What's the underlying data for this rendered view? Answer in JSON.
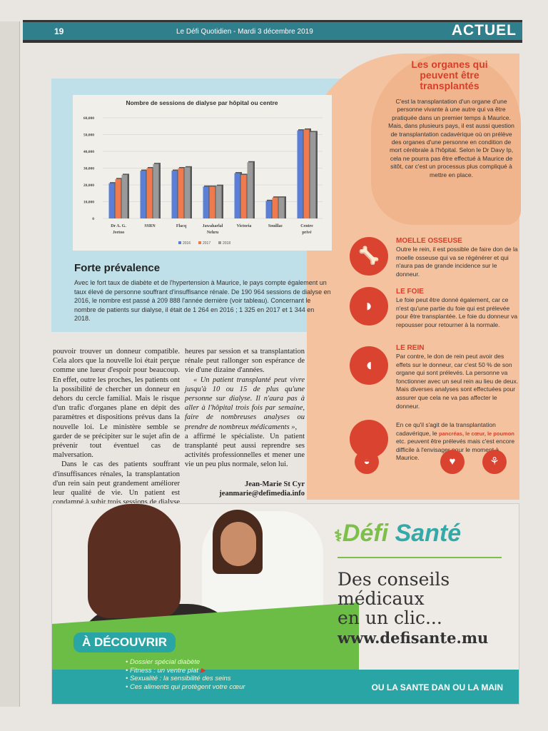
{
  "header": {
    "page": "19",
    "publication": "Le Défi Quotidien - Mardi 3 décembre 2019",
    "section": "ACTUEL"
  },
  "chart_data": {
    "type": "bar",
    "title": "Nombre de sessions de dialyse par hôpital ou centre",
    "categories": [
      "Dr A. G. Jeetoo",
      "SSRN",
      "Flacq",
      "Jawaharlal Nehru",
      "Victoria",
      "Souillac",
      "Centre privé"
    ],
    "series": [
      {
        "name": "2016",
        "color": "#5b7fd6",
        "values": [
          21000,
          28500,
          28500,
          19000,
          27000,
          10500,
          52500
        ]
      },
      {
        "name": "2017",
        "color": "#ee7a4f",
        "values": [
          23500,
          30000,
          30000,
          19000,
          26000,
          12500,
          53000
        ]
      },
      {
        "name": "2018",
        "color": "#9a9a9a",
        "values": [
          26000,
          32500,
          30500,
          19500,
          33500,
          12500,
          51500
        ]
      }
    ],
    "yticks": [
      "0",
      "10,000",
      "20,000",
      "30,000",
      "40,000",
      "50,000",
      "60,000"
    ],
    "ylim": [
      0,
      60000
    ],
    "grid": true,
    "legend": "bottom"
  },
  "forte": {
    "title": "Forte prévalence",
    "text": "Avec le fort taux de diabète et de l'hypertension à Maurice, le pays compte également un taux élevé de personne souffrant d'insuffisance rénale. De 190 964 sessions de dialyse en 2016, le nombre est passé à 209 888 l'année dernière (voir tableau). Concernant le nombre de patients sur dialyse, il était de 1 264 en 2016 ; 1 325 en 2017 et 1 344 en 2018."
  },
  "organes": {
    "title": "Les organes qui peuvent être transplantés",
    "intro": "C'est la transplantation d'un organe d'une personne vivante à une autre qui va être pratiquée dans un premier temps à Maurice. Mais, dans plusieurs pays, il est aussi question de transplantation cadavérique où on prélève des organes d'une personne en condition de mort cérébrale à l'hôpital. Selon le Dr Davy Ip, cela ne pourra pas être effectué à Maurice de sitôt, car c'est un processus plus compliqué à mettre en place.",
    "items": [
      {
        "title": "MOELLE OSSEUSE",
        "text": "Outre le rein, il est possible de faire don de la moelle osseuse qui va se régénérer et qui n'aura pas de grande incidence sur le donneur.",
        "icon": "bone-icon"
      },
      {
        "title": "LE FOIE",
        "text": "Le foie peut être donné également, car ce n'est qu'une partie du foie qui est prélevée pour être transplantée. Le foie du donneur va repousser pour retourner à la normale.",
        "icon": "liver-icon"
      },
      {
        "title": "LE REIN",
        "text": "Par contre, le don de rein peut avoir des effets sur le donneur, car c'est 50 % de son organe qui sont prélevés. La personne va fonctionner avec un seul rein au lieu de deux. Mais diverses analyses sont effectuées pour assurer que cela ne va pas affecter le donneur.",
        "icon": "kidney-icon"
      }
    ],
    "cadaver": {
      "before": "En ce qu'il s'agit de la transplantation cadavérique, le ",
      "highlight": "pancréas, le cœur, le poumon",
      "after": " etc. peuvent être prélevés mais c'est encore difficile à l'envisager pour le moment à Maurice."
    }
  },
  "article": {
    "col1": [
      "pouvoir trouver un donneur compatible. Cela alors que la nouvelle loi était perçue comme une lueur d'espoir pour beaucoup. En effet, outre les proches, les patients ont la possibilité de chercher un donneur en dehors du cercle familial. Mais le risque d'un trafic d'organes plane en dépit des paramètres et dispositions prévus dans la nouvelle loi. Le ministère semble se garder de se précipiter sur le sujet afin de prévenir tout éventuel cas de malversation.",
      "Dans le cas des patients souffrant d'insuffisances rénales, la transplantation d'un rein sain peut grandement améliorer leur qualité de vie. Un patient est condamné à subir trois sessions de dialyse par semaine à raison de trois à quatre"
    ],
    "col2a": "heures par session et sa transplantation rénale peut rallonger son espérance de vie d'une dizaine d'années.",
    "quote": "« Un patient transplanté peut vivre jusqu'à 10 ou 15 de plus qu'une personne sur dialyse. Il n'aura pas à aller à l'hôpital trois fois par semaine, faire de nombreuses analyses ou prendre de nombreux médicaments »,",
    "col2b": "a affirmé le spécialiste. Un patient transplanté peut aussi reprendre ses activités professionnelles et mener une vie un peu plus normale, selon lui.",
    "author": "Jean-Marie St Cyr",
    "email": "jeanmarie@defimedia.info"
  },
  "ad": {
    "badge": "À DÉCOUVRIR",
    "list": [
      "Dossier spécial diabète",
      "Fitness : un ventre plat",
      "Sexualité : la sensibilité des seins",
      "Ces aliments qui protègent votre cœur"
    ],
    "logo": "Défi Santé",
    "logo_a": "Défi",
    "logo_b": "Santé",
    "tagline": [
      "Des conseils",
      "médicaux",
      "en un clic..."
    ],
    "url": "www.defisante.mu",
    "slogan": "OU LA SANTE DAN OU LA MAIN"
  }
}
